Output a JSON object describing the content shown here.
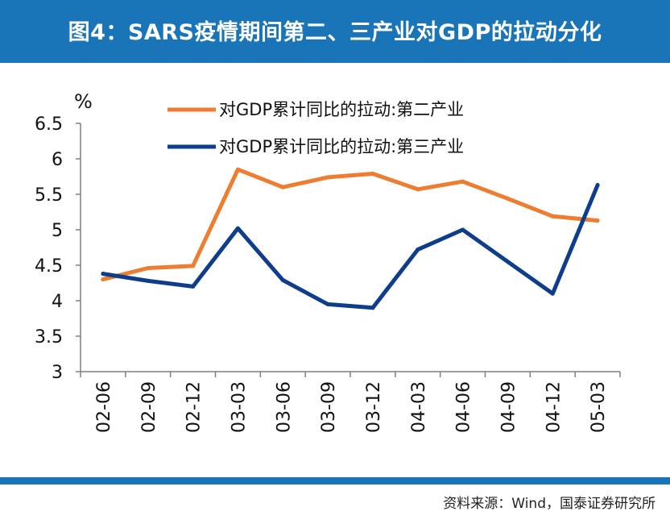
{
  "header": {
    "title": "图4：SARS疫情期间第二、三产业对GDP的拉动分化"
  },
  "footer": {
    "source": "资料来源：Wind，国泰证券研究所"
  },
  "colors": {
    "banner": "#1a75b8",
    "secondary_industry": "#ed7d31",
    "tertiary_industry": "#0e3d8c"
  },
  "chart_data": {
    "type": "line",
    "unit": "%",
    "categories": [
      "02-06",
      "02-09",
      "02-12",
      "03-03",
      "03-06",
      "03-09",
      "03-12",
      "04-03",
      "04-06",
      "04-09",
      "04-12",
      "05-03"
    ],
    "ylim": [
      3,
      6.5
    ],
    "yticks": [
      "3",
      "3.5",
      "4",
      "4.5",
      "5",
      "5.5",
      "6",
      "6.5"
    ],
    "legend_position": "top-center",
    "grid": false,
    "series": [
      {
        "name": "对GDP累计同比的拉动:第二产业",
        "color": "#ed7d31",
        "values": [
          4.3,
          4.46,
          4.49,
          5.85,
          5.6,
          5.74,
          5.79,
          5.57,
          5.68,
          5.44,
          5.19,
          5.13
        ]
      },
      {
        "name": "对GDP累计同比的拉动:第三产业",
        "color": "#0e3d8c",
        "values": [
          4.38,
          4.28,
          4.2,
          5.02,
          4.29,
          3.95,
          3.9,
          4.72,
          5.0,
          4.55,
          4.1,
          5.63
        ]
      }
    ]
  }
}
